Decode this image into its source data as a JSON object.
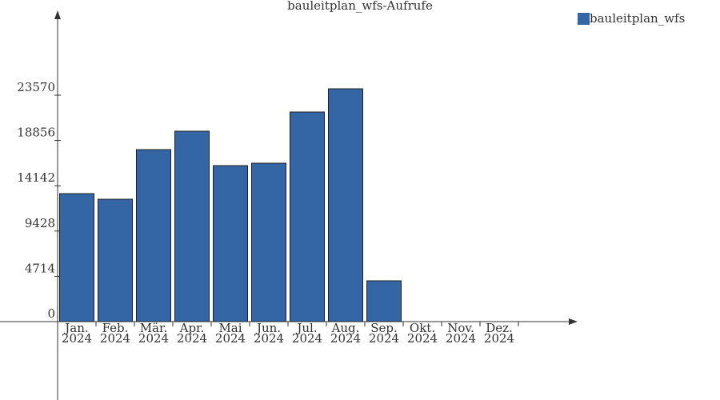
{
  "chart_data": {
    "type": "bar",
    "title": "bauleitplan_wfs-Aufrufe",
    "categories": [
      [
        "Jan.",
        "2024"
      ],
      [
        "Feb.",
        "2024"
      ],
      [
        "Mär.",
        "2024"
      ],
      [
        "Apr.",
        "2024"
      ],
      [
        "Mai",
        "2024"
      ],
      [
        "Jun.",
        "2024"
      ],
      [
        "Jul.",
        "2024"
      ],
      [
        "Aug.",
        "2024"
      ],
      [
        "Sep.",
        "2024"
      ],
      [
        "Okt.",
        "2024"
      ],
      [
        "Nov.",
        "2024"
      ],
      [
        "Dez.",
        "2024"
      ]
    ],
    "series": [
      {
        "name": "bauleitplan_wfs",
        "color": "#3465a4",
        "values": [
          13325,
          12742,
          17906,
          19822,
          16240,
          16490,
          21820,
          24236,
          4248,
          null,
          null,
          null
        ]
      }
    ],
    "ylim": [
      -8160,
      32230
    ],
    "yticks": [
      0,
      4714,
      9428,
      14142,
      18856,
      23570
    ],
    "legend": "top-right"
  }
}
